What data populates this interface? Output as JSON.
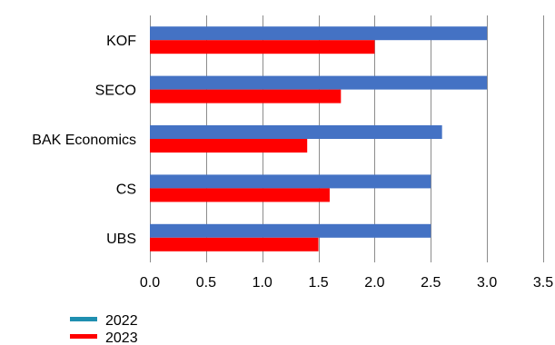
{
  "chart_data": {
    "type": "bar",
    "orientation": "horizontal",
    "categories": [
      "KOF",
      "SECO",
      "BAK Economics",
      "CS",
      "UBS"
    ],
    "series": [
      {
        "name": "2022",
        "values": [
          3.0,
          3.0,
          2.6,
          2.5,
          2.5
        ],
        "color": "#4472c4",
        "legend_color": "#1f8fb0"
      },
      {
        "name": "2023",
        "values": [
          2.0,
          1.7,
          1.4,
          1.6,
          1.5
        ],
        "color": "#ff0000",
        "legend_color": "#ff0000"
      }
    ],
    "xlim": [
      0,
      3.5
    ],
    "xticks": [
      "0.0",
      "0.5",
      "1.0",
      "1.5",
      "2.0",
      "2.5",
      "3.0",
      "3.5"
    ],
    "grid": true,
    "legend_position": "bottom-left"
  }
}
